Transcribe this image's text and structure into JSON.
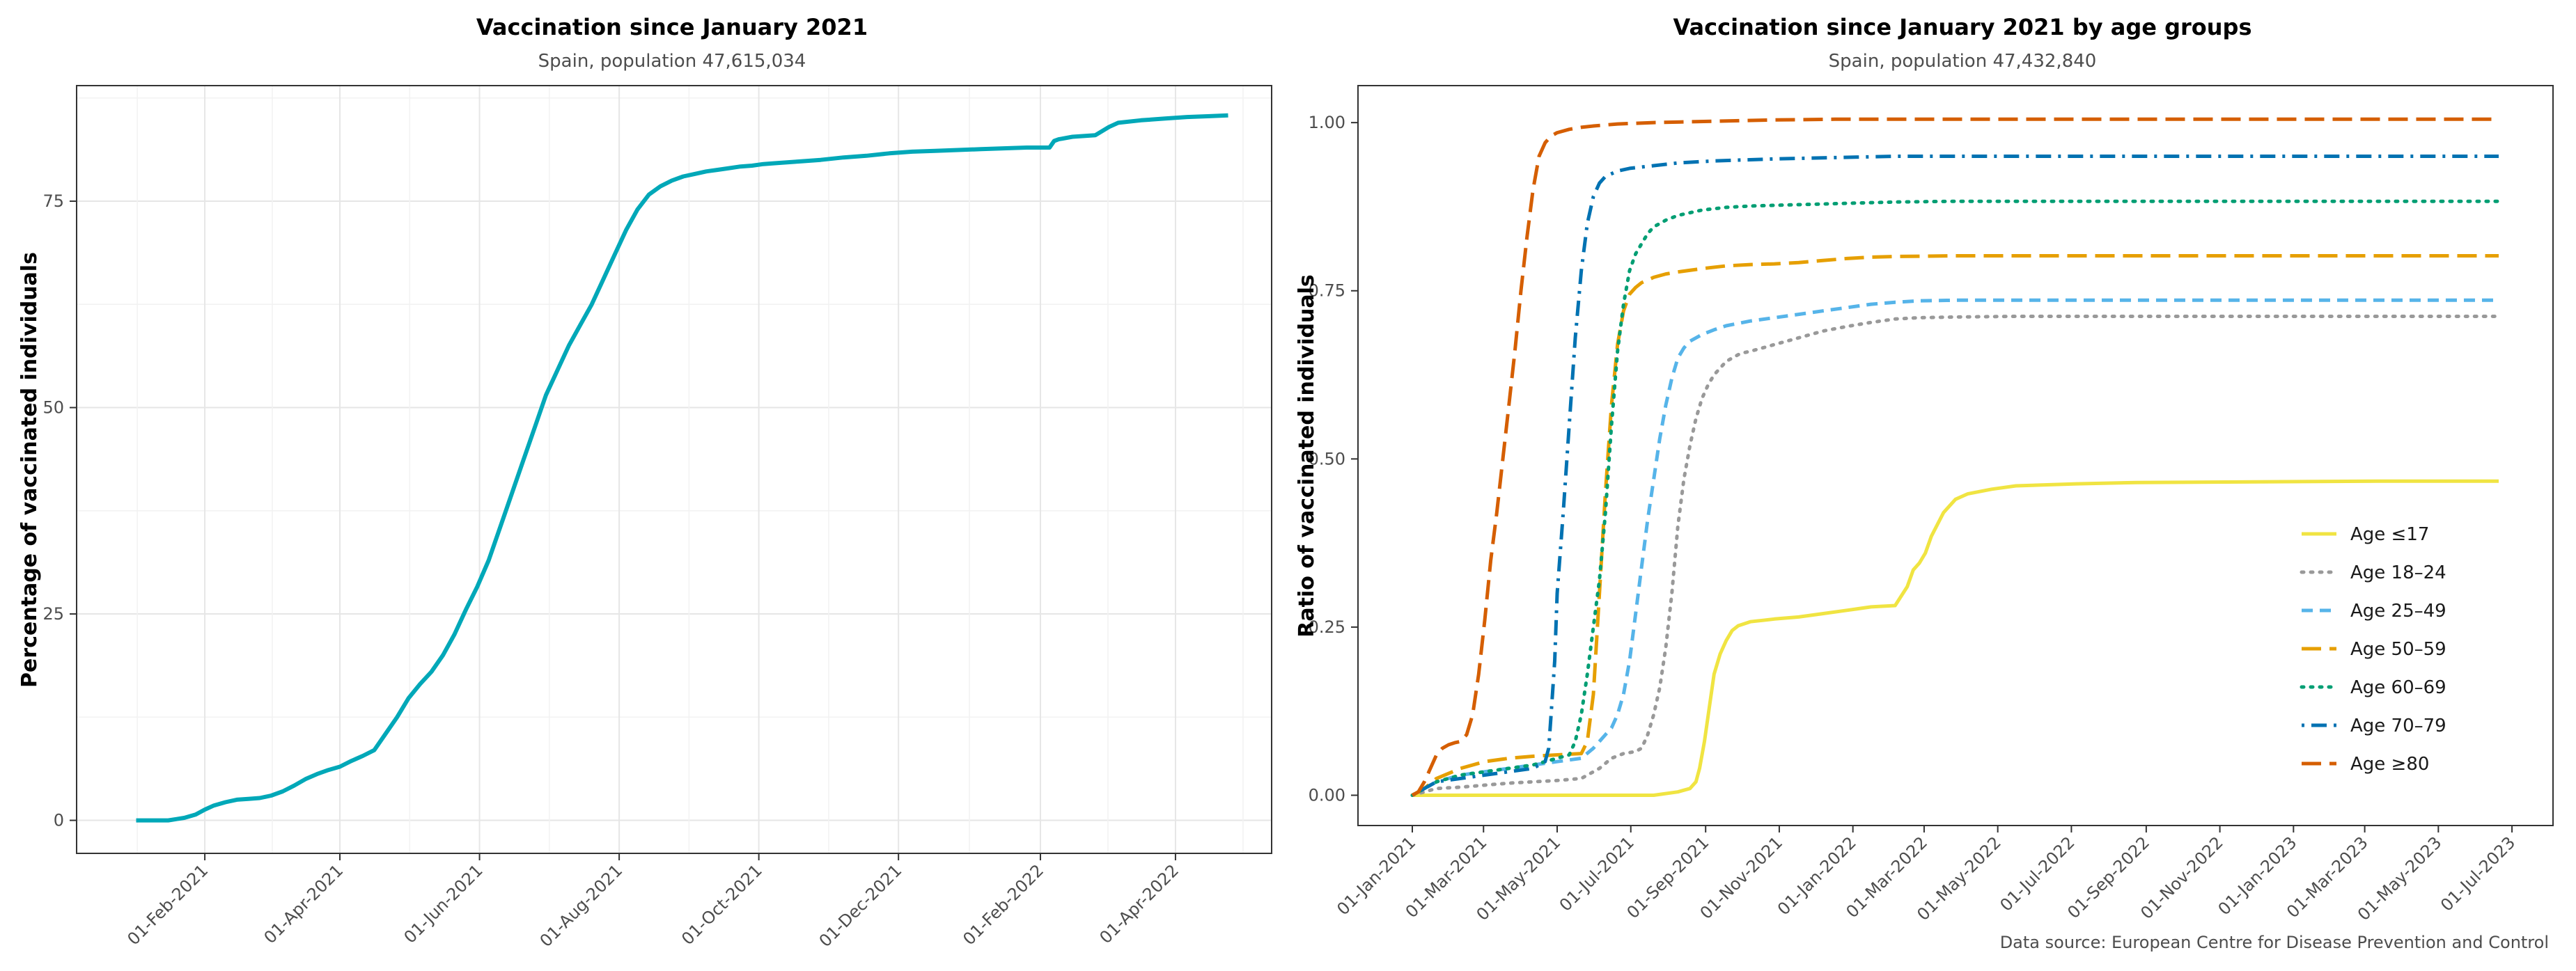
{
  "chart_data": [
    {
      "type": "line",
      "title": "Vaccination since January 2021",
      "subtitle": "Spain, population 47,615,034",
      "xlabel": "",
      "ylabel": "Percentage of vaccinated individuals",
      "x_tick_labels": [
        "01-Feb-2021",
        "01-Apr-2021",
        "01-Jun-2021",
        "01-Aug-2021",
        "01-Oct-2021",
        "01-Dec-2021",
        "01-Feb-2022",
        "01-Apr-2022"
      ],
      "x_tick_days": [
        31,
        90,
        151,
        212,
        273,
        334,
        396,
        455
      ],
      "xlim_days": [
        -25,
        497
      ],
      "y_ticks": [
        0,
        25,
        50,
        75
      ],
      "y_tick_labels": [
        "0",
        "25",
        "50",
        "75"
      ],
      "ylim": [
        -4,
        89
      ],
      "grid": true,
      "color": "#00A8B8",
      "series": [
        {
          "name": "Percentage of vaccinated individuals",
          "x_days": [
            1,
            15,
            22,
            27,
            31,
            35,
            40,
            45,
            50,
            55,
            60,
            65,
            70,
            75,
            80,
            85,
            90,
            95,
            100,
            105,
            110,
            115,
            120,
            125,
            130,
            135,
            140,
            145,
            150,
            155,
            160,
            165,
            170,
            175,
            180,
            185,
            190,
            195,
            200,
            205,
            210,
            215,
            220,
            225,
            230,
            235,
            240,
            245,
            250,
            255,
            260,
            265,
            270,
            275,
            280,
            290,
            300,
            310,
            320,
            330,
            340,
            350,
            360,
            370,
            380,
            390,
            400,
            402,
            404,
            410,
            420,
            426,
            430,
            440,
            450,
            460,
            470,
            478
          ],
          "values": [
            0,
            0,
            0.3,
            0.7,
            1.3,
            1.8,
            2.2,
            2.5,
            2.6,
            2.7,
            3.0,
            3.5,
            4.2,
            5.0,
            5.6,
            6.1,
            6.5,
            7.2,
            7.8,
            8.5,
            10.5,
            12.5,
            14.8,
            16.5,
            18.0,
            20.0,
            22.5,
            25.5,
            28.3,
            31.5,
            35.5,
            39.5,
            43.5,
            47.5,
            51.5,
            54.5,
            57.5,
            60.0,
            62.5,
            65.5,
            68.5,
            71.5,
            74.0,
            75.8,
            76.8,
            77.5,
            78.0,
            78.3,
            78.6,
            78.8,
            79.0,
            79.2,
            79.3,
            79.5,
            79.6,
            79.8,
            80.0,
            80.3,
            80.5,
            80.8,
            81.0,
            81.1,
            81.2,
            81.3,
            81.4,
            81.5,
            81.5,
            82.3,
            82.5,
            82.8,
            83.0,
            84.0,
            84.5,
            84.8,
            85.0,
            85.2,
            85.3,
            85.4
          ]
        }
      ]
    },
    {
      "type": "line",
      "title": "Vaccination since January 2021 by age groups",
      "subtitle": "Spain, population 47,432,840",
      "xlabel": "",
      "ylabel": "Ratio of vaccinated individuals",
      "x_tick_labels": [
        "01-Jan-2021",
        "01-Mar-2021",
        "01-May-2021",
        "01-Jul-2021",
        "01-Sep-2021",
        "01-Nov-2021",
        "01-Jan-2022",
        "01-Mar-2022",
        "01-May-2022",
        "01-Jul-2022",
        "01-Sep-2022",
        "01-Nov-2022",
        "01-Jan-2023",
        "01-Mar-2023",
        "01-May-2023",
        "01-Jul-2023"
      ],
      "x_tick_days": [
        0,
        59,
        120,
        181,
        243,
        304,
        365,
        424,
        485,
        546,
        608,
        669,
        730,
        789,
        850,
        911
      ],
      "xlim_days": [
        -45,
        945
      ],
      "y_ticks": [
        0,
        0.25,
        0.5,
        0.75,
        1.0
      ],
      "y_tick_labels": [
        "0.00",
        "0.25",
        "0.50",
        "0.75",
        "1.00"
      ],
      "ylim": [
        -0.045,
        1.055
      ],
      "grid": false,
      "legend_position": "right",
      "series": [
        {
          "name": "Age ≤17",
          "color": "#F0E442",
          "dash": "solid",
          "x_days": [
            0,
            100,
            200,
            220,
            230,
            235,
            238,
            242,
            246,
            250,
            255,
            260,
            265,
            270,
            275,
            280,
            290,
            300,
            320,
            340,
            360,
            380,
            400,
            410,
            415,
            420,
            425,
            430,
            440,
            450,
            460,
            480,
            500,
            550,
            600,
            700,
            800,
            900
          ],
          "values": [
            0,
            0,
            0,
            0.005,
            0.01,
            0.02,
            0.04,
            0.08,
            0.13,
            0.18,
            0.21,
            0.23,
            0.245,
            0.252,
            0.255,
            0.258,
            0.26,
            0.262,
            0.265,
            0.27,
            0.275,
            0.28,
            0.282,
            0.31,
            0.335,
            0.345,
            0.36,
            0.385,
            0.42,
            0.44,
            0.448,
            0.455,
            0.46,
            0.463,
            0.465,
            0.466,
            0.467,
            0.467
          ]
        },
        {
          "name": "Age 18–24",
          "color": "#999999",
          "dash": "dotted",
          "x_days": [
            0,
            10,
            20,
            40,
            60,
            80,
            100,
            120,
            140,
            155,
            165,
            175,
            185,
            190,
            195,
            200,
            205,
            210,
            215,
            220,
            225,
            230,
            235,
            240,
            245,
            250,
            255,
            260,
            265,
            270,
            275,
            280,
            290,
            300,
            320,
            340,
            360,
            380,
            400,
            420,
            450,
            500,
            600,
            700,
            800,
            900
          ],
          "values": [
            0,
            0.005,
            0.01,
            0.012,
            0.015,
            0.018,
            0.02,
            0.022,
            0.025,
            0.04,
            0.055,
            0.062,
            0.065,
            0.07,
            0.09,
            0.12,
            0.16,
            0.22,
            0.3,
            0.4,
            0.47,
            0.52,
            0.56,
            0.59,
            0.61,
            0.625,
            0.635,
            0.645,
            0.65,
            0.655,
            0.658,
            0.66,
            0.665,
            0.67,
            0.68,
            0.69,
            0.697,
            0.703,
            0.708,
            0.71,
            0.711,
            0.712,
            0.712,
            0.712,
            0.712,
            0.712
          ]
        },
        {
          "name": "Age 25–49",
          "color": "#56B4E9",
          "dash": "dashed",
          "x_days": [
            0,
            10,
            20,
            40,
            60,
            80,
            100,
            120,
            140,
            150,
            160,
            165,
            170,
            175,
            180,
            185,
            190,
            195,
            200,
            205,
            210,
            215,
            220,
            225,
            230,
            240,
            250,
            260,
            280,
            300,
            320,
            340,
            360,
            380,
            400,
            420,
            450,
            500,
            600,
            700,
            800,
            900
          ],
          "values": [
            0,
            0.01,
            0.02,
            0.03,
            0.035,
            0.04,
            0.045,
            0.05,
            0.055,
            0.07,
            0.09,
            0.1,
            0.12,
            0.15,
            0.2,
            0.27,
            0.34,
            0.41,
            0.47,
            0.53,
            0.58,
            0.62,
            0.65,
            0.665,
            0.675,
            0.685,
            0.692,
            0.698,
            0.705,
            0.71,
            0.715,
            0.72,
            0.725,
            0.73,
            0.733,
            0.735,
            0.736,
            0.736,
            0.736,
            0.736,
            0.736,
            0.736
          ]
        },
        {
          "name": "Age 50–59",
          "color": "#E69F00",
          "dash": "longdash",
          "x_days": [
            0,
            10,
            20,
            40,
            60,
            80,
            100,
            120,
            140,
            145,
            150,
            155,
            160,
            165,
            170,
            175,
            180,
            185,
            190,
            200,
            210,
            220,
            240,
            260,
            280,
            300,
            320,
            340,
            360,
            380,
            400,
            450,
            500,
            600,
            700,
            800,
            900
          ],
          "values": [
            0,
            0.01,
            0.025,
            0.04,
            0.05,
            0.055,
            0.058,
            0.06,
            0.062,
            0.08,
            0.15,
            0.3,
            0.45,
            0.58,
            0.67,
            0.72,
            0.745,
            0.755,
            0.762,
            0.77,
            0.775,
            0.778,
            0.783,
            0.787,
            0.789,
            0.79,
            0.792,
            0.795,
            0.798,
            0.8,
            0.801,
            0.802,
            0.802,
            0.802,
            0.802,
            0.802,
            0.802
          ]
        },
        {
          "name": "Age 60–69",
          "color": "#009E73",
          "dash": "dotted",
          "x_days": [
            0,
            10,
            20,
            40,
            60,
            80,
            100,
            110,
            120,
            130,
            135,
            140,
            145,
            150,
            155,
            160,
            165,
            170,
            175,
            180,
            185,
            190,
            195,
            200,
            210,
            220,
            240,
            260,
            280,
            300,
            320,
            340,
            360,
            400,
            450,
            500,
            600,
            700,
            800,
            900
          ],
          "values": [
            0,
            0.01,
            0.02,
            0.03,
            0.035,
            0.04,
            0.045,
            0.05,
            0.055,
            0.06,
            0.08,
            0.12,
            0.18,
            0.25,
            0.32,
            0.42,
            0.55,
            0.66,
            0.73,
            0.78,
            0.805,
            0.82,
            0.835,
            0.845,
            0.855,
            0.862,
            0.87,
            0.874,
            0.876,
            0.877,
            0.878,
            0.879,
            0.88,
            0.882,
            0.883,
            0.883,
            0.883,
            0.883,
            0.883,
            0.883
          ]
        },
        {
          "name": "Age 70–79",
          "color": "#0072B2",
          "dash": "dotdash",
          "x_days": [
            0,
            10,
            20,
            40,
            60,
            80,
            100,
            110,
            113,
            115,
            118,
            120,
            125,
            130,
            135,
            140,
            145,
            150,
            155,
            160,
            170,
            180,
            200,
            220,
            250,
            300,
            350,
            400,
            450,
            500,
            600,
            700,
            800,
            900
          ],
          "values": [
            0,
            0.01,
            0.02,
            0.025,
            0.03,
            0.035,
            0.04,
            0.05,
            0.07,
            0.12,
            0.2,
            0.3,
            0.42,
            0.55,
            0.68,
            0.78,
            0.85,
            0.89,
            0.91,
            0.92,
            0.928,
            0.932,
            0.936,
            0.94,
            0.943,
            0.946,
            0.948,
            0.95,
            0.95,
            0.95,
            0.95,
            0.95,
            0.95,
            0.95
          ]
        },
        {
          "name": "Age ≥80",
          "color": "#D55E00",
          "dash": "longdash",
          "x_days": [
            0,
            5,
            10,
            15,
            20,
            25,
            30,
            35,
            40,
            45,
            50,
            55,
            60,
            65,
            70,
            75,
            80,
            85,
            90,
            95,
            100,
            105,
            110,
            115,
            120,
            130,
            140,
            150,
            170,
            200,
            250,
            300,
            350,
            400,
            450,
            500,
            600,
            700,
            800,
            900
          ],
          "values": [
            0,
            0.005,
            0.02,
            0.04,
            0.06,
            0.07,
            0.075,
            0.078,
            0.08,
            0.09,
            0.12,
            0.18,
            0.26,
            0.35,
            0.42,
            0.5,
            0.58,
            0.66,
            0.75,
            0.83,
            0.9,
            0.95,
            0.97,
            0.98,
            0.985,
            0.99,
            0.993,
            0.995,
            0.998,
            1.0,
            1.002,
            1.004,
            1.005,
            1.005,
            1.005,
            1.005,
            1.005,
            1.005,
            1.005,
            1.005
          ]
        }
      ]
    }
  ],
  "caption": "Data source: European Centre for Disease Prevention and Control"
}
